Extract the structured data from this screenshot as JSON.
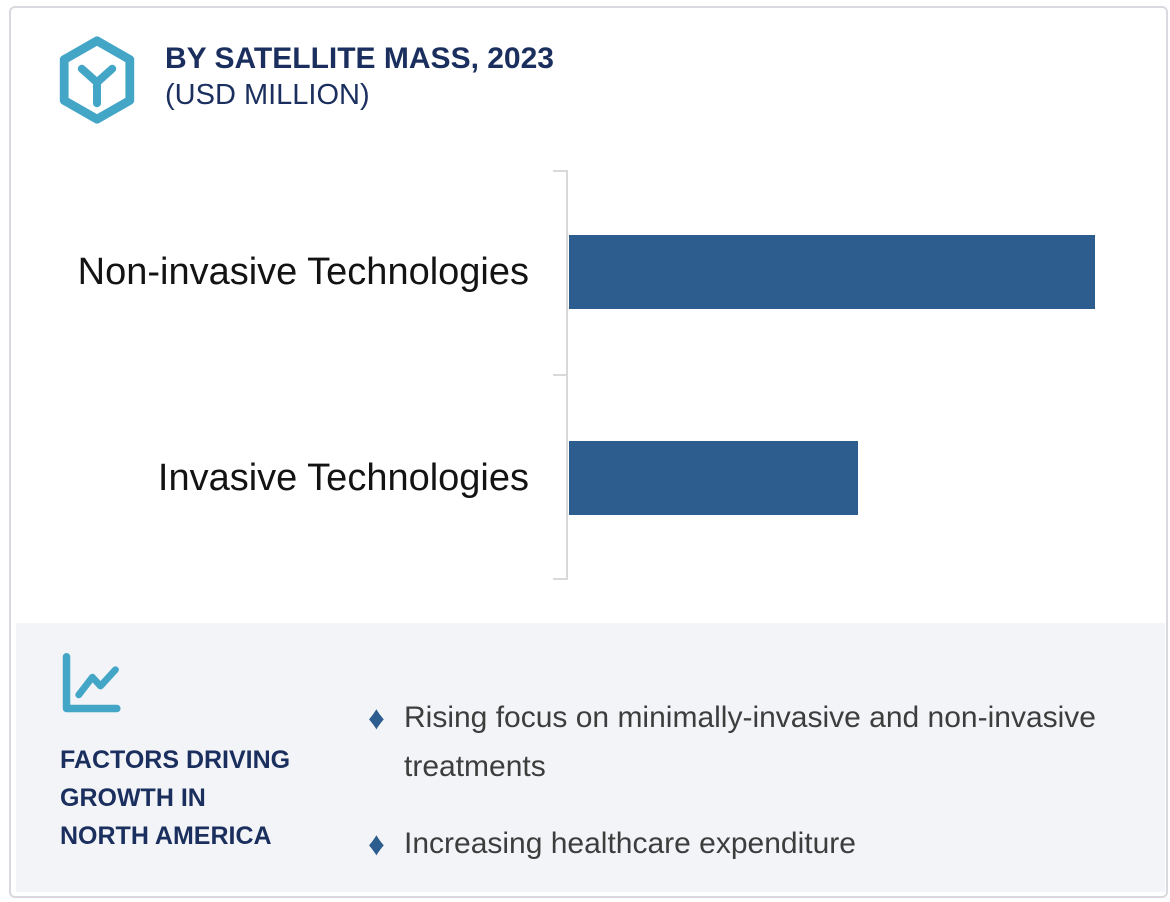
{
  "header": {
    "title_line1": "BY SATELLITE MASS, 2023",
    "title_line2": "(USD MILLION)",
    "icon": "hexagon-cube-icon"
  },
  "chart_data": {
    "type": "bar",
    "orientation": "horizontal",
    "title": "BY SATELLITE MASS, 2023 (USD MILLION)",
    "unit": "USD Million",
    "categories": [
      "Non-invasive Technologies",
      "Invasive Technologies"
    ],
    "values": [
      100,
      55
    ],
    "values_labeled": false,
    "value_note": "bars unlabeled; lengths estimated relative, longest = 100",
    "bar_color": "#2d5c8e",
    "axis_color": "#d9d9d9",
    "gridlines": false,
    "legend": false
  },
  "factors": {
    "icon": "line-chart-icon",
    "heading": "FACTORS DRIVING\nGROWTH IN\nNORTH AMERICA",
    "bullet_marker": "♦",
    "bullets": [
      "Rising focus on minimally-invasive and non-invasive treatments",
      "Increasing healthcare expenditure"
    ]
  },
  "colors": {
    "navy": "#1b2f5e",
    "teal": "#43a6c6",
    "bar_blue": "#2d5c8e",
    "panel_bg": "#f2f4f7",
    "axis_gray": "#d9d9d9",
    "body_text": "#3d3d3d"
  }
}
